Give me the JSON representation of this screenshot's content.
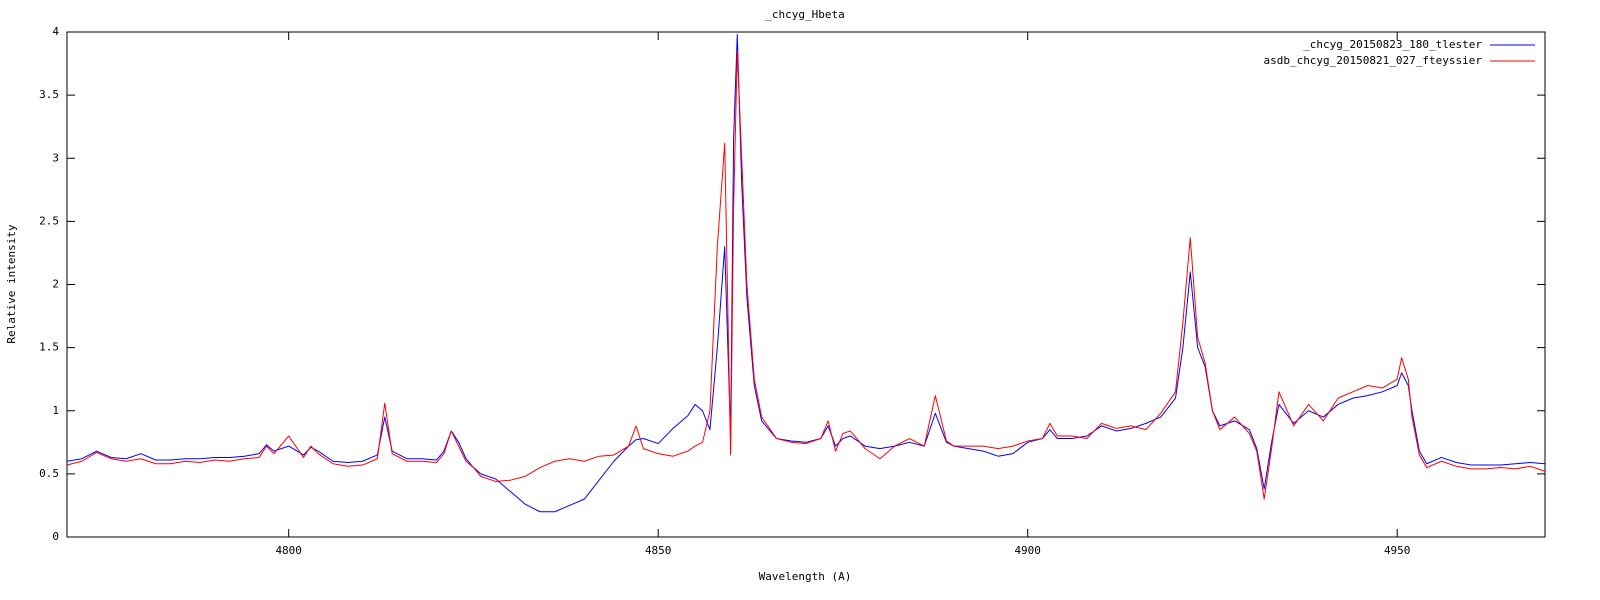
{
  "chart_data": {
    "type": "line",
    "title": "_chcyg_Hbeta",
    "x_label": "Wavelength (A)",
    "y_label": "Relative intensity",
    "x": [
      4770,
      4772,
      4774,
      4776,
      4778,
      4780,
      4782,
      4784,
      4786,
      4788,
      4790,
      4792,
      4794,
      4796,
      4797,
      4798,
      4800,
      4802,
      4803,
      4804,
      4806,
      4808,
      4810,
      4812,
      4813,
      4814,
      4816,
      4818,
      4820,
      4821,
      4822,
      4823,
      4824,
      4825,
      4826,
      4828,
      4830,
      4832,
      4834,
      4836,
      4838,
      4840,
      4842,
      4844,
      4846,
      4847,
      4848,
      4850,
      4852,
      4854,
      4855,
      4856,
      4857,
      4858,
      4859,
      4859.8,
      4860.2,
      4860.7,
      4861.3,
      4862,
      4863,
      4864,
      4866,
      4868,
      4870,
      4872,
      4873,
      4874,
      4875,
      4876,
      4878,
      4880,
      4882,
      4884,
      4886,
      4887.5,
      4889,
      4890,
      4892,
      4894,
      4896,
      4898,
      4900,
      4902,
      4903,
      4904,
      4906,
      4908,
      4910,
      4912,
      4914,
      4916,
      4918,
      4920,
      4921,
      4922,
      4923,
      4924,
      4925,
      4926,
      4928,
      4930,
      4931,
      4932,
      4933,
      4934,
      4936,
      4938,
      4940,
      4942,
      4944,
      4946,
      4948,
      4950,
      4950.6,
      4951.5,
      4952,
      4953,
      4954,
      4956,
      4958,
      4960,
      4962,
      4964,
      4966,
      4968,
      4970
    ],
    "series": [
      {
        "name": "_chcyg_20150823_180_tlester",
        "color": "#0000ff",
        "values": [
          0.6,
          0.62,
          0.68,
          0.63,
          0.62,
          0.66,
          0.61,
          0.61,
          0.62,
          0.62,
          0.63,
          0.63,
          0.64,
          0.66,
          0.73,
          0.68,
          0.72,
          0.65,
          0.71,
          0.68,
          0.6,
          0.59,
          0.6,
          0.65,
          0.95,
          0.68,
          0.62,
          0.62,
          0.61,
          0.68,
          0.84,
          0.75,
          0.62,
          0.55,
          0.5,
          0.46,
          0.36,
          0.26,
          0.2,
          0.2,
          0.25,
          0.3,
          0.45,
          0.6,
          0.72,
          0.77,
          0.78,
          0.74,
          0.86,
          0.96,
          1.05,
          1.0,
          0.85,
          1.5,
          2.3,
          0.8,
          3.15,
          3.98,
          2.8,
          1.9,
          1.2,
          0.92,
          0.78,
          0.76,
          0.75,
          0.78,
          0.88,
          0.72,
          0.78,
          0.8,
          0.72,
          0.7,
          0.72,
          0.75,
          0.72,
          0.98,
          0.75,
          0.72,
          0.7,
          0.68,
          0.64,
          0.66,
          0.75,
          0.78,
          0.85,
          0.78,
          0.78,
          0.8,
          0.88,
          0.84,
          0.86,
          0.9,
          0.95,
          1.1,
          1.5,
          2.1,
          1.5,
          1.35,
          1.0,
          0.88,
          0.92,
          0.85,
          0.7,
          0.38,
          0.75,
          1.05,
          0.9,
          1.0,
          0.95,
          1.05,
          1.1,
          1.12,
          1.15,
          1.2,
          1.3,
          1.2,
          1.0,
          0.68,
          0.58,
          0.63,
          0.59,
          0.57,
          0.57,
          0.57,
          0.58,
          0.59,
          0.58
        ]
      },
      {
        "name": "asdb_chcyg_20150821_027_fteyssier",
        "color": "#ff0000",
        "values": [
          0.57,
          0.6,
          0.67,
          0.62,
          0.6,
          0.62,
          0.58,
          0.58,
          0.6,
          0.59,
          0.61,
          0.6,
          0.62,
          0.63,
          0.72,
          0.66,
          0.8,
          0.63,
          0.72,
          0.66,
          0.58,
          0.56,
          0.57,
          0.62,
          1.06,
          0.66,
          0.6,
          0.6,
          0.59,
          0.66,
          0.84,
          0.72,
          0.6,
          0.55,
          0.48,
          0.44,
          0.45,
          0.48,
          0.55,
          0.6,
          0.62,
          0.6,
          0.64,
          0.65,
          0.72,
          0.88,
          0.7,
          0.66,
          0.64,
          0.68,
          0.72,
          0.75,
          1.0,
          2.3,
          3.12,
          0.65,
          2.6,
          3.85,
          3.0,
          2.0,
          1.25,
          0.95,
          0.78,
          0.75,
          0.74,
          0.78,
          0.92,
          0.68,
          0.82,
          0.84,
          0.7,
          0.62,
          0.72,
          0.78,
          0.72,
          1.12,
          0.76,
          0.72,
          0.72,
          0.72,
          0.7,
          0.72,
          0.76,
          0.78,
          0.9,
          0.8,
          0.8,
          0.78,
          0.9,
          0.86,
          0.88,
          0.85,
          0.98,
          1.15,
          1.7,
          2.37,
          1.58,
          1.38,
          1.0,
          0.85,
          0.95,
          0.82,
          0.68,
          0.3,
          0.7,
          1.15,
          0.88,
          1.05,
          0.92,
          1.1,
          1.15,
          1.2,
          1.18,
          1.25,
          1.42,
          1.25,
          0.95,
          0.65,
          0.55,
          0.6,
          0.56,
          0.54,
          0.54,
          0.55,
          0.54,
          0.56,
          0.52
        ]
      }
    ],
    "xlim": [
      4770,
      4970
    ],
    "xticks": [
      4800,
      4850,
      4900,
      4950
    ],
    "ylim": [
      0,
      4
    ],
    "yticks": [
      0,
      0.5,
      1,
      1.5,
      2,
      2.5,
      3,
      3.5,
      4
    ],
    "legend": "top-right",
    "grid": false
  }
}
